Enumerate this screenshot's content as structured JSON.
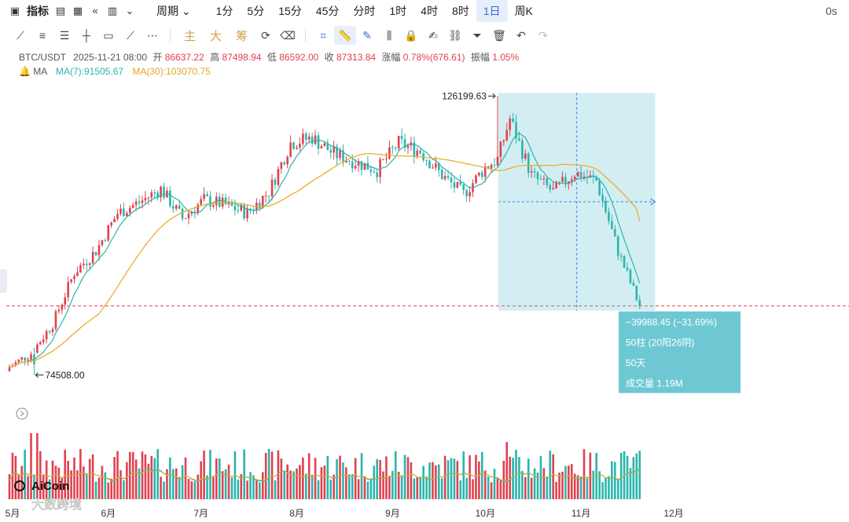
{
  "toolbar": {
    "indicator_label": "指标",
    "period_label": "周期",
    "periods": [
      "1分",
      "5分",
      "15分",
      "45分",
      "分时",
      "1时",
      "4时",
      "8时",
      "1日",
      "周K"
    ],
    "active_period": "1日",
    "timer": "0s"
  },
  "drawbar": {
    "text_tools": [
      "主",
      "大",
      "筹"
    ]
  },
  "info": {
    "symbol": "BTC/USDT",
    "datetime": "2025-11-21 08:00",
    "open_label": "开",
    "open": "86637.22",
    "high_label": "高",
    "high": "87498.94",
    "low_label": "低",
    "low": "86592.00",
    "close_label": "收",
    "close": "87313.84",
    "change_label": "涨幅",
    "change": "0.78%(676.61)",
    "amp_label": "振幅",
    "amp": "1.05%",
    "ma_label": "MA",
    "ma7": "MA(7):91505.67",
    "ma30": "MA(30):103070.75"
  },
  "chart_data": {
    "type": "candlestick",
    "title": "BTC/USDT",
    "interval": "1日",
    "x": [
      "2025-05-01",
      "2025-05-08",
      "2025-05-15",
      "2025-05-22",
      "2025-05-29",
      "2025-06-05",
      "2025-06-12",
      "2025-06-19",
      "2025-06-26",
      "2025-07-03",
      "2025-07-10",
      "2025-07-17",
      "2025-07-24",
      "2025-07-31",
      "2025-08-07",
      "2025-08-14",
      "2025-08-21",
      "2025-08-28",
      "2025-09-04",
      "2025-09-11",
      "2025-09-18",
      "2025-09-25",
      "2025-10-02",
      "2025-10-06",
      "2025-10-10",
      "2025-10-17",
      "2025-10-24",
      "2025-10-31",
      "2025-11-07",
      "2025-11-14",
      "2025-11-21"
    ],
    "close": [
      76000,
      78500,
      84000,
      93500,
      97500,
      104500,
      106500,
      109000,
      103500,
      107000,
      106000,
      104500,
      108500,
      117500,
      118500,
      115500,
      114000,
      112500,
      117500,
      116000,
      111500,
      108000,
      113000,
      114500,
      122000,
      111500,
      108500,
      112000,
      110500,
      97500,
      87313.84
    ],
    "ma7_last": 91505.67,
    "ma30_last": 103070.75,
    "x_tick_labels": [
      "5月",
      "6月",
      "7月",
      "8月",
      "9月",
      "10月",
      "11月",
      "12月"
    ],
    "annotations": {
      "high_label": "126199.63",
      "low_label": "74508.00",
      "measure_change": "−39988.45 (−31.69%)",
      "measure_bars": "50柱 (20阳26阴)",
      "measure_days": "50天",
      "measure_volume": "成交量 1.19M"
    },
    "colors": {
      "up": "#e0424f",
      "down": "#2bb5ad",
      "ma7": "#2bb5ad",
      "ma30": "#e6b02a",
      "measure": "#62c3cf"
    }
  },
  "watermark": {
    "brand": "AiCoin",
    "sub": "大数跨境"
  }
}
